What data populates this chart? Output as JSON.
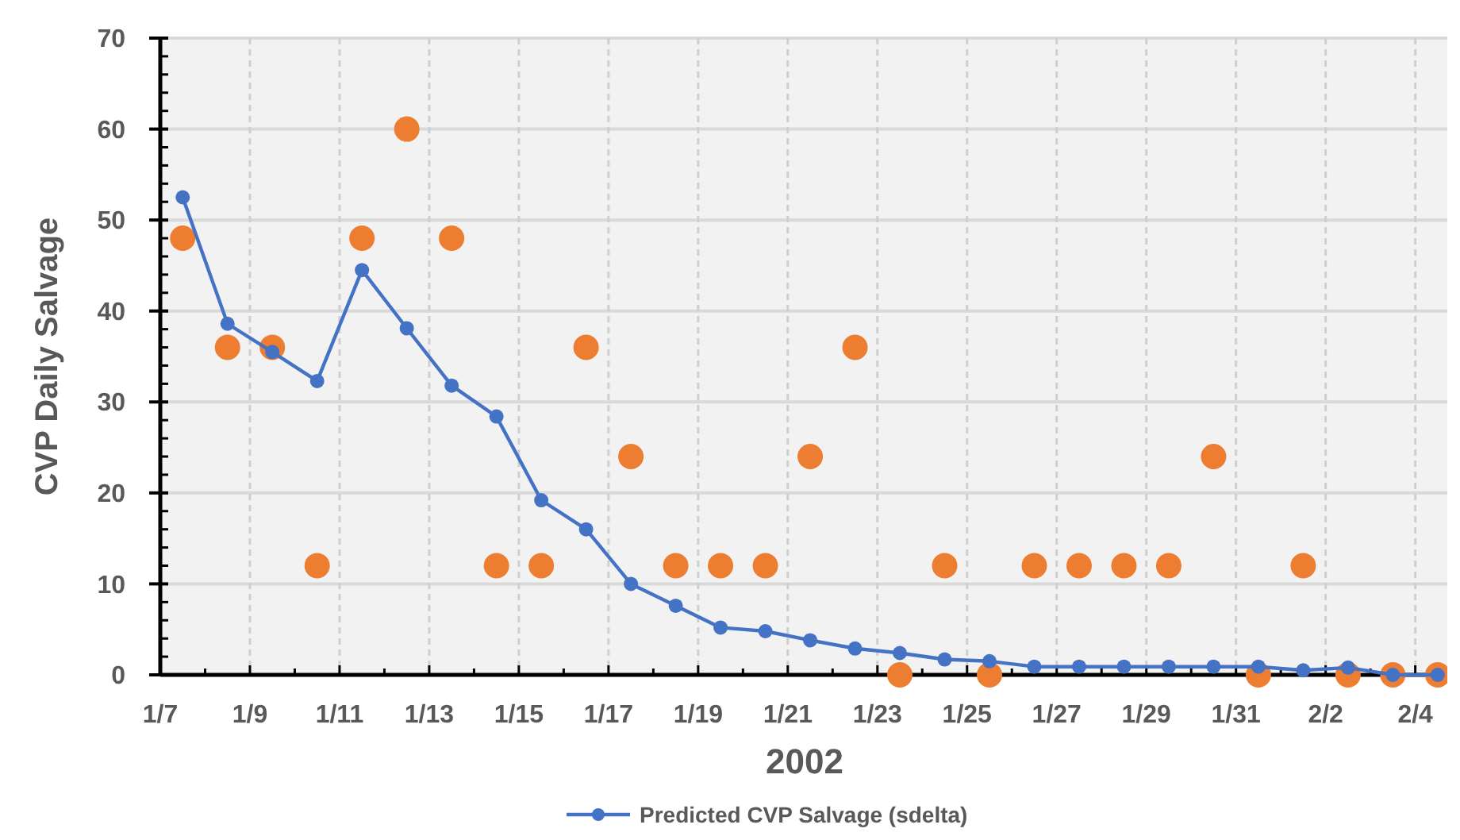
{
  "chart_data": {
    "type": "line",
    "xlabel": "2002",
    "ylabel": "CVP Daily Salvage",
    "x": [
      "2002-01-07T12:00",
      "2002-01-08T12:00",
      "2002-01-09T12:00",
      "2002-01-10T12:00",
      "2002-01-11T12:00",
      "2002-01-12T12:00",
      "2002-01-13T12:00",
      "2002-01-14T12:00",
      "2002-01-15T12:00",
      "2002-01-16T12:00",
      "2002-01-17T12:00",
      "2002-01-18T12:00",
      "2002-01-19T12:00",
      "2002-01-20T12:00",
      "2002-01-21T12:00",
      "2002-01-22T12:00",
      "2002-01-23T12:00",
      "2002-01-24T12:00",
      "2002-01-25T12:00",
      "2002-01-26T12:00",
      "2002-01-27T12:00",
      "2002-01-28T12:00",
      "2002-01-29T12:00",
      "2002-01-30T12:00",
      "2002-01-31T12:00",
      "2002-02-01T12:00",
      "2002-02-02T12:00",
      "2002-02-03T12:00",
      "2002-02-04T12:00"
    ],
    "series": [
      {
        "name": "Predicted CVP Salvage (sdelta)",
        "color": "#4472c4",
        "marker": "circle",
        "values": [
          52.5,
          38.6,
          35.5,
          32.3,
          44.5,
          38.1,
          31.8,
          28.4,
          19.2,
          16,
          10,
          7.6,
          5.2,
          4.8,
          3.8,
          2.9,
          2.4,
          1.7,
          1.5,
          0.9,
          0.9,
          0.9,
          0.9,
          0.9,
          0.9,
          0.5,
          0.8,
          0,
          0
        ]
      },
      {
        "type": "scatter",
        "color": "#ed7d31",
        "marker": "circle",
        "values": [
          48,
          36,
          36,
          12,
          48,
          60,
          48,
          12,
          12,
          36,
          24,
          12,
          12,
          12,
          24,
          36,
          0,
          12,
          0,
          12,
          12,
          12,
          12,
          24,
          0,
          12,
          0,
          0,
          0
        ]
      }
    ],
    "xlim": [
      "2002-01-07",
      "2002-02-04T18:00"
    ],
    "xticks": [
      {
        "value": "2002-01-07",
        "label": "1/7"
      },
      {
        "value": "2002-01-08",
        "label": null
      },
      {
        "value": "2002-01-09",
        "label": "1/9"
      },
      {
        "value": "2002-01-10",
        "label": null
      },
      {
        "value": "2002-01-11",
        "label": "1/11"
      },
      {
        "value": "2002-01-12",
        "label": null
      },
      {
        "value": "2002-01-13",
        "label": "1/13"
      },
      {
        "value": "2002-01-14",
        "label": null
      },
      {
        "value": "2002-01-15",
        "label": "1/15"
      },
      {
        "value": "2002-01-16",
        "label": null
      },
      {
        "value": "2002-01-17",
        "label": "1/17"
      },
      {
        "value": "2002-01-18",
        "label": null
      },
      {
        "value": "2002-01-19",
        "label": "1/19"
      },
      {
        "value": "2002-01-20",
        "label": null
      },
      {
        "value": "2002-01-21",
        "label": "1/21"
      },
      {
        "value": "2002-01-22",
        "label": null
      },
      {
        "value": "2002-01-23",
        "label": "1/23"
      },
      {
        "value": "2002-01-24",
        "label": null
      },
      {
        "value": "2002-01-25",
        "label": "1/25"
      },
      {
        "value": "2002-01-26",
        "label": null
      },
      {
        "value": "2002-01-27",
        "label": "1/27"
      },
      {
        "value": "2002-01-28",
        "label": null
      },
      {
        "value": "2002-01-29",
        "label": "1/29"
      },
      {
        "value": "2002-01-30",
        "label": null
      },
      {
        "value": "2002-01-31",
        "label": "1/31"
      },
      {
        "value": "2002-02-01",
        "label": null
      },
      {
        "value": "2002-02-02",
        "label": "2/2"
      },
      {
        "value": "2002-02-03",
        "label": null
      },
      {
        "value": "2002-02-04",
        "label": "2/4"
      }
    ],
    "ylim": [
      0,
      70
    ],
    "yticks": [
      0,
      10,
      20,
      30,
      40,
      50,
      60,
      70
    ],
    "grid": true,
    "legend": "bottom"
  }
}
